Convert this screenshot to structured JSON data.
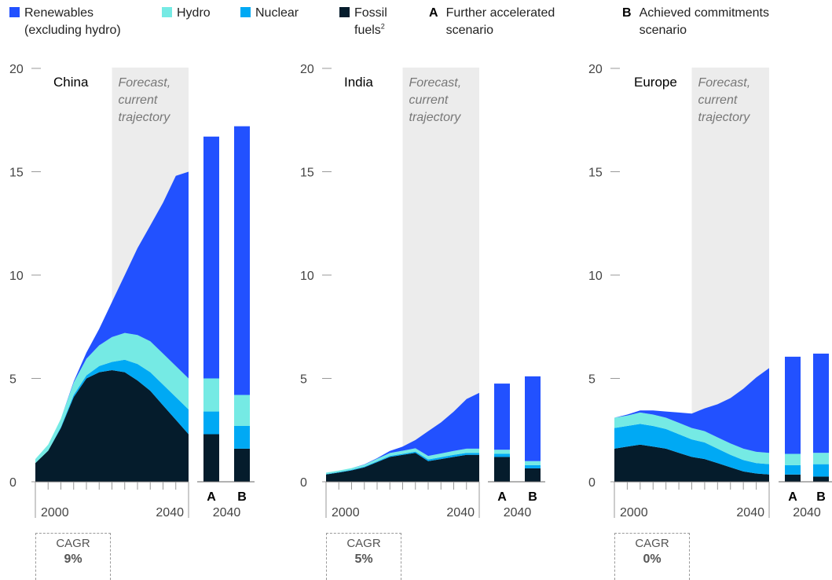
{
  "colors": {
    "renewables": "#2251ff",
    "hydro": "#75eae4",
    "nuclear": "#00a9f4",
    "fossil": "#051c2c",
    "forecast_band": "#ececec",
    "axis": "#999999"
  },
  "legend": {
    "renewables": "Renewables\n(excluding hydro)",
    "hydro": "Hydro",
    "nuclear": "Nuclear",
    "fossil": "Fossil\nfuels",
    "fossil_note": "2",
    "scenario_a_letter": "A",
    "scenario_a": "Further accelerated\nscenario",
    "scenario_b_letter": "B",
    "scenario_b": "Achieved commitments\nscenario"
  },
  "chart_data": [
    {
      "type": "area",
      "region": "China",
      "band_label": "Forecast,\ncurrent\ntrajectory",
      "x": [
        1990,
        1995,
        2000,
        2005,
        2010,
        2015,
        2020,
        2025,
        2030,
        2035,
        2040,
        2045,
        2050
      ],
      "series": [
        {
          "name": "Fossil fuels",
          "values": [
            0.9,
            1.5,
            2.6,
            4.1,
            5.0,
            5.3,
            5.4,
            5.3,
            4.9,
            4.4,
            3.7,
            3.0,
            2.3
          ]
        },
        {
          "name": "Nuclear",
          "values": [
            0.0,
            0.0,
            0.05,
            0.1,
            0.15,
            0.3,
            0.4,
            0.6,
            0.8,
            0.9,
            1.0,
            1.1,
            1.2
          ]
        },
        {
          "name": "Hydro",
          "values": [
            0.2,
            0.3,
            0.4,
            0.6,
            0.8,
            1.0,
            1.2,
            1.3,
            1.4,
            1.5,
            1.5,
            1.5,
            1.5
          ]
        },
        {
          "name": "Renewables (excluding hydro)",
          "values": [
            0.0,
            0.0,
            0.0,
            0.05,
            0.3,
            0.8,
            1.7,
            2.8,
            4.2,
            5.6,
            7.3,
            9.2,
            10.0
          ]
        }
      ],
      "scenarios": [
        {
          "label": "A",
          "year": "2040",
          "values": {
            "fossil": 2.3,
            "nuclear": 1.1,
            "hydro": 1.6,
            "renewables": 11.7
          }
        },
        {
          "label": "B",
          "year": "2040",
          "values": {
            "fossil": 1.6,
            "nuclear": 1.1,
            "hydro": 1.5,
            "renewables": 13.0
          }
        }
      ],
      "cagr_label": "CAGR",
      "cagr": "9%"
    },
    {
      "type": "area",
      "region": "India",
      "band_label": "Forecast,\ncurrent\ntrajectory",
      "x": [
        1990,
        1995,
        2000,
        2005,
        2010,
        2015,
        2020,
        2025,
        2030,
        2035,
        2040,
        2045,
        2050
      ],
      "series": [
        {
          "name": "Fossil fuels",
          "values": [
            0.35,
            0.45,
            0.55,
            0.7,
            0.95,
            1.2,
            1.3,
            1.4,
            1.0,
            1.1,
            1.2,
            1.3,
            1.3
          ]
        },
        {
          "name": "Nuclear",
          "values": [
            0.02,
            0.02,
            0.03,
            0.03,
            0.04,
            0.05,
            0.05,
            0.06,
            0.08,
            0.09,
            0.1,
            0.1,
            0.1
          ]
        },
        {
          "name": "Hydro",
          "values": [
            0.07,
            0.07,
            0.08,
            0.1,
            0.12,
            0.14,
            0.15,
            0.16,
            0.17,
            0.18,
            0.19,
            0.2,
            0.2
          ]
        },
        {
          "name": "Renewables (excluding hydro)",
          "values": [
            0.0,
            0.0,
            0.0,
            0.01,
            0.03,
            0.1,
            0.2,
            0.4,
            1.2,
            1.5,
            1.9,
            2.4,
            2.7
          ]
        }
      ],
      "scenarios": [
        {
          "label": "A",
          "year": "2040",
          "values": {
            "fossil": 1.2,
            "nuclear": 0.15,
            "hydro": 0.2,
            "renewables": 3.2
          }
        },
        {
          "label": "B",
          "year": "2040",
          "values": {
            "fossil": 0.65,
            "nuclear": 0.15,
            "hydro": 0.2,
            "renewables": 4.1
          }
        }
      ],
      "cagr_label": "CAGR",
      "cagr": "5%"
    },
    {
      "type": "area",
      "region": "Europe",
      "band_label": "Forecast,\ncurrent\ntrajectory",
      "x": [
        1990,
        1995,
        2000,
        2005,
        2010,
        2015,
        2020,
        2025,
        2030,
        2035,
        2040,
        2045,
        2050
      ],
      "series": [
        {
          "name": "Fossil fuels",
          "values": [
            1.6,
            1.7,
            1.8,
            1.7,
            1.6,
            1.4,
            1.2,
            1.1,
            0.9,
            0.7,
            0.5,
            0.4,
            0.35
          ]
        },
        {
          "name": "Nuclear",
          "values": [
            1.0,
            1.0,
            1.0,
            1.0,
            0.95,
            0.9,
            0.85,
            0.8,
            0.7,
            0.6,
            0.55,
            0.5,
            0.5
          ]
        },
        {
          "name": "Hydro",
          "values": [
            0.5,
            0.5,
            0.55,
            0.55,
            0.55,
            0.55,
            0.55,
            0.55,
            0.55,
            0.55,
            0.55,
            0.55,
            0.55
          ]
        },
        {
          "name": "Renewables (excluding hydro)",
          "values": [
            0.0,
            0.05,
            0.1,
            0.2,
            0.3,
            0.5,
            0.7,
            1.1,
            1.6,
            2.2,
            2.9,
            3.6,
            4.1
          ]
        }
      ],
      "scenarios": [
        {
          "label": "A",
          "year": "2040",
          "values": {
            "fossil": 0.35,
            "nuclear": 0.45,
            "hydro": 0.55,
            "renewables": 4.7
          }
        },
        {
          "label": "B",
          "year": "2040",
          "values": {
            "fossil": 0.25,
            "nuclear": 0.6,
            "hydro": 0.55,
            "renewables": 4.8
          }
        }
      ],
      "cagr_label": "CAGR",
      "cagr": "0%"
    }
  ],
  "axis": {
    "y_ticks": [
      0,
      5,
      10,
      15,
      20
    ],
    "y_tick_labels": [
      "0",
      "5",
      "10",
      "15",
      "20"
    ],
    "ylim": [
      0,
      20
    ],
    "x_tick_labels": [
      "2000",
      "2040"
    ],
    "x_tick_years": [
      2000,
      2040
    ],
    "scenario_year_label": "2040"
  }
}
